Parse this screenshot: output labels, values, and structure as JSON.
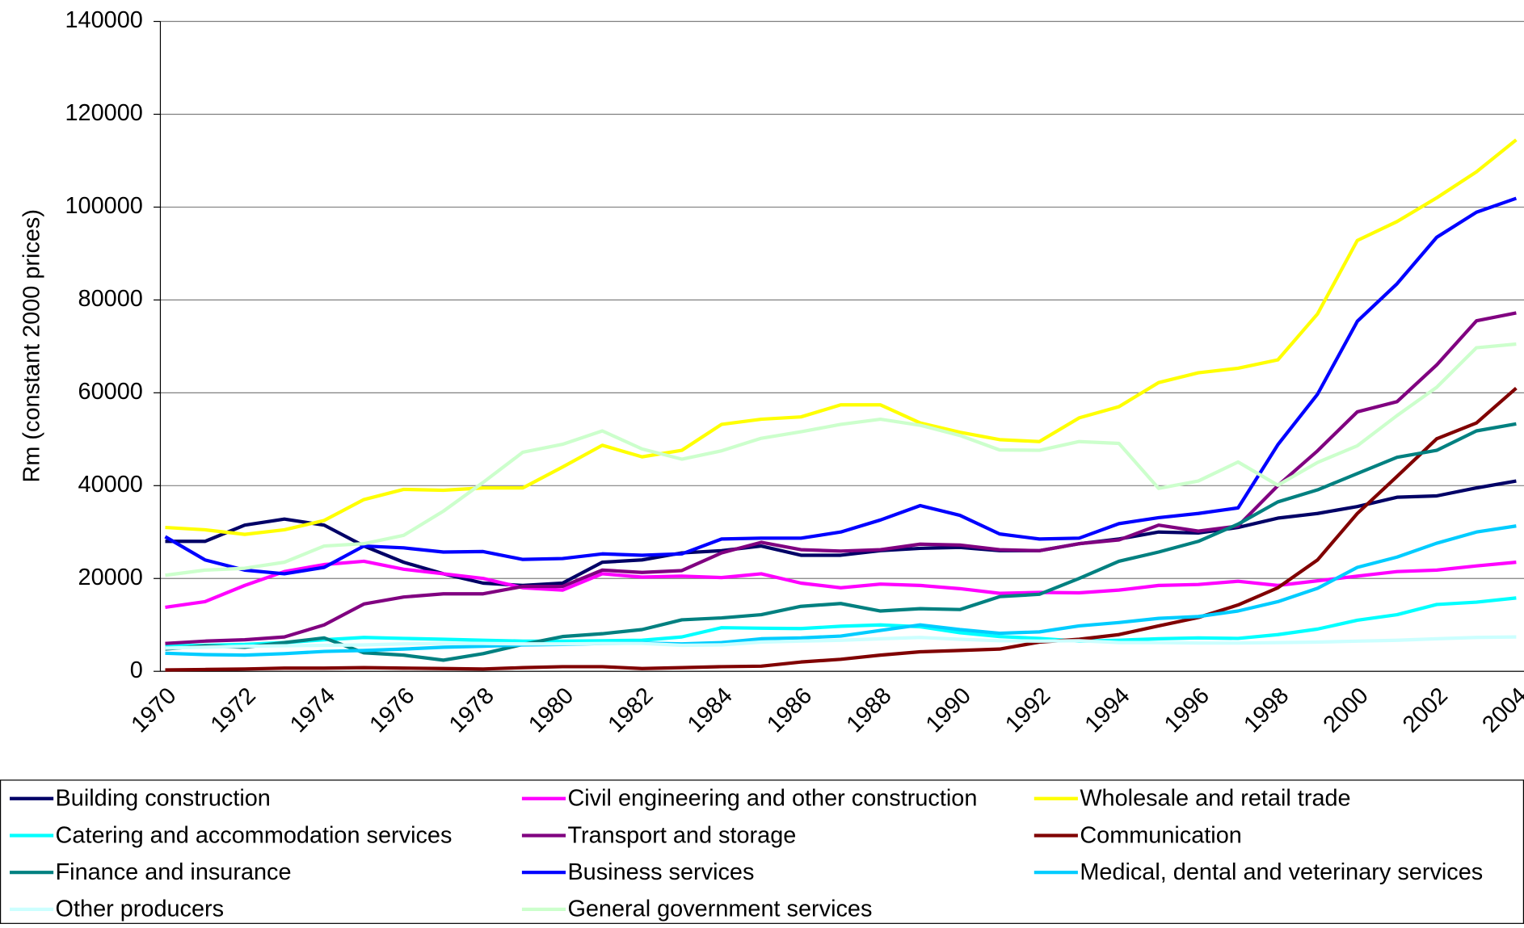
{
  "chart_data": {
    "type": "line",
    "ylabel": "Rm (constant 2000 prices)",
    "categories": [
      "1970",
      null,
      "1972",
      null,
      "1974",
      null,
      "1976",
      null,
      "1978",
      null,
      "1980",
      null,
      "1982",
      null,
      "1984",
      null,
      "1986",
      null,
      "1988",
      null,
      "1990",
      null,
      "1992",
      null,
      "1994",
      null,
      "1996",
      null,
      "1998",
      null,
      "2000",
      null,
      "2002",
      null,
      "2004"
    ],
    "ylim": [
      0,
      140000
    ],
    "yticks": [
      0,
      20000,
      40000,
      60000,
      80000,
      100000,
      120000,
      140000
    ],
    "grid": true,
    "legend": "bottom",
    "series": [
      {
        "name": "Building construction",
        "color": "#000066",
        "values": [
          28000,
          28000,
          31500,
          32800,
          31500,
          27000,
          23500,
          21000,
          19000,
          18500,
          19000,
          23500,
          24000,
          25500,
          26000,
          27000,
          25000,
          25000,
          26000,
          26500,
          26700,
          26000,
          26000,
          27500,
          28500,
          30000,
          29800,
          31000,
          33000,
          34000,
          35500,
          37500,
          37800,
          39500,
          41000
        ]
      },
      {
        "name": "Civil engineering and other construction",
        "color": "#ff00ff",
        "values": [
          13800,
          15000,
          18500,
          21500,
          23000,
          23700,
          22000,
          21000,
          20000,
          18000,
          17500,
          21000,
          20300,
          20500,
          20200,
          21000,
          19000,
          18000,
          18800,
          18500,
          17800,
          16800,
          17000,
          16900,
          17500,
          18500,
          18700,
          19400,
          18500,
          19500,
          20500,
          21500,
          21800,
          22700,
          23500
        ]
      },
      {
        "name": "Wholesale and retail trade",
        "color": "#ffff00",
        "values": [
          31000,
          30500,
          29500,
          30500,
          32500,
          37000,
          39200,
          39000,
          39500,
          39500,
          44000,
          48700,
          46200,
          47600,
          53200,
          54300,
          54800,
          57400,
          57400,
          53500,
          51500,
          49900,
          49500,
          54600,
          57000,
          62200,
          64300,
          65300,
          67100,
          77000,
          92800,
          96900,
          102000,
          107600,
          114500
        ]
      },
      {
        "name": "Catering and accommodation services",
        "color": "#00ffff",
        "values": [
          5500,
          5600,
          5800,
          6200,
          6800,
          7300,
          7100,
          6900,
          6700,
          6500,
          6500,
          6600,
          6700,
          7400,
          9400,
          9300,
          9200,
          9700,
          10000,
          9600,
          8300,
          7500,
          7100,
          6500,
          6700,
          7000,
          7200,
          7100,
          7900,
          9100,
          11000,
          12200,
          14400,
          14900,
          15800
        ]
      },
      {
        "name": "Transport and storage",
        "color": "#800080",
        "values": [
          6000,
          6500,
          6800,
          7400,
          10000,
          14500,
          16000,
          16700,
          16700,
          18300,
          18300,
          21800,
          21300,
          21700,
          25500,
          27800,
          26200,
          25900,
          26200,
          27400,
          27200,
          26200,
          26000,
          27500,
          28300,
          31500,
          30200,
          31300,
          40000,
          47500,
          55900,
          58100,
          66000,
          75500,
          77200
        ]
      },
      {
        "name": "Communication",
        "color": "#800000",
        "values": [
          300,
          400,
          500,
          700,
          700,
          800,
          700,
          600,
          500,
          800,
          1000,
          1000,
          600,
          800,
          1000,
          1100,
          2000,
          2600,
          3500,
          4200,
          4500,
          4800,
          6300,
          6900,
          7900,
          9800,
          11600,
          14300,
          18000,
          24000,
          34000,
          42000,
          50100,
          53500,
          61000
        ]
      },
      {
        "name": "Finance and insurance",
        "color": "#008080",
        "values": [
          4800,
          5500,
          5200,
          6200,
          7200,
          4000,
          3500,
          2400,
          3800,
          5800,
          7500,
          8100,
          9000,
          11100,
          11500,
          12200,
          14000,
          14600,
          13000,
          13500,
          13300,
          16100,
          16600,
          20000,
          23700,
          25700,
          28000,
          31700,
          36500,
          39100,
          42600,
          46100,
          47600,
          51800,
          53300
        ]
      },
      {
        "name": "Business services",
        "color": "#0000ff",
        "values": [
          29000,
          24000,
          21800,
          21000,
          22400,
          27000,
          26600,
          25700,
          25800,
          24100,
          24300,
          25300,
          25000,
          25300,
          28500,
          28700,
          28700,
          30000,
          32600,
          35700,
          33600,
          29600,
          28500,
          28700,
          31800,
          33100,
          34000,
          35200,
          48800,
          59700,
          75400,
          83500,
          93500,
          98900,
          101900
        ]
      },
      {
        "name": "Medical, dental and veterinary services",
        "color": "#00ccff",
        "values": [
          3900,
          3600,
          3500,
          3800,
          4300,
          4500,
          4800,
          5200,
          5400,
          5700,
          5800,
          6000,
          6100,
          5900,
          6200,
          7000,
          7200,
          7600,
          8800,
          10000,
          9000,
          8200,
          8500,
          9800,
          10500,
          11400,
          11800,
          13000,
          15000,
          17900,
          22400,
          24600,
          27600,
          30000,
          31300
        ]
      },
      {
        "name": "Other producers",
        "color": "#ccffff",
        "values": [
          5000,
          5200,
          5400,
          5500,
          5600,
          5700,
          5900,
          6000,
          6000,
          5900,
          5900,
          6000,
          6000,
          5600,
          5700,
          6300,
          6500,
          6700,
          7000,
          7300,
          6900,
          6600,
          6500,
          6600,
          6200,
          6200,
          6100,
          6100,
          6200,
          6300,
          6500,
          6700,
          7000,
          7300,
          7400
        ]
      },
      {
        "name": "General government services",
        "color": "#ccffcc",
        "values": [
          20700,
          21800,
          22200,
          23500,
          27000,
          27500,
          29300,
          34500,
          40700,
          47200,
          48900,
          51800,
          47900,
          45700,
          47500,
          50200,
          51600,
          53200,
          54300,
          53000,
          50800,
          47700,
          47600,
          49500,
          49100,
          39400,
          41000,
          45100,
          40100,
          45000,
          48600,
          55100,
          61200,
          69700,
          70500
        ]
      }
    ]
  }
}
